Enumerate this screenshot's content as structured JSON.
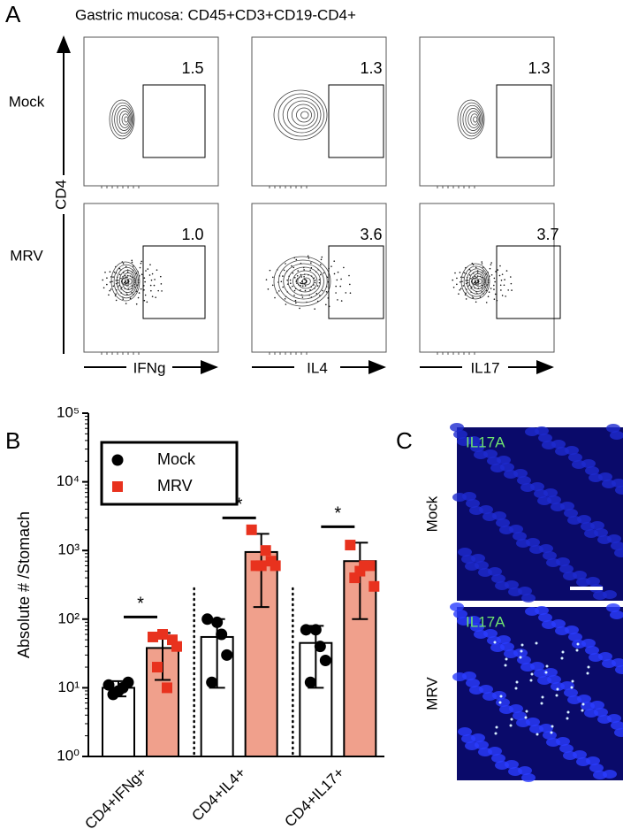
{
  "panel_labels": [
    "A",
    "B",
    "C"
  ],
  "panel_a": {
    "title": "Gastric mucosa: CD45+CD3+CD19-CD4+",
    "y_label": "CD4",
    "rows": [
      "Mock",
      "MRV"
    ],
    "columns": [
      "IFNg",
      "IL4",
      "IL17"
    ],
    "gates": [
      [
        "1.5",
        "1.3",
        "1.3"
      ],
      [
        "1.0",
        "3.6",
        "3.7"
      ]
    ]
  },
  "chart_data": {
    "type": "bar",
    "y_label": "Absolute # /Stomach",
    "log_scale": true,
    "categories": [
      "CD4+IFNg+",
      "CD4+IL4+",
      "CD4+IL17+"
    ],
    "ylim": [
      1,
      100000
    ],
    "yticks": [
      {
        "value": 1,
        "label": "10⁰"
      },
      {
        "value": 10,
        "label": "10¹"
      },
      {
        "value": 100,
        "label": "10²"
      },
      {
        "value": 1000,
        "label": "10³"
      },
      {
        "value": 10000,
        "label": "10⁴"
      },
      {
        "value": 100000,
        "label": "10⁵"
      }
    ],
    "series": [
      {
        "name": "Mock",
        "color": "#000000",
        "bar_color": "#ffffff",
        "marker": "circle",
        "values": [
          10,
          55,
          45
        ],
        "errors": [
          2.5,
          45,
          35
        ],
        "points": [
          [
            11,
            9,
            12,
            8,
            10
          ],
          [
            100,
            90,
            30,
            12,
            60
          ],
          [
            70,
            70,
            25,
            12,
            40
          ]
        ]
      },
      {
        "name": "MRV",
        "color": "#e8321e",
        "bar_color": "#f0a08c",
        "marker": "square",
        "values": [
          38,
          950,
          700
        ],
        "errors": [
          25,
          800,
          600
        ],
        "points": [
          [
            55,
            60,
            50,
            20,
            10,
            40
          ],
          [
            2000,
            600,
            700,
            600,
            1000,
            600
          ],
          [
            1200,
            500,
            600,
            400,
            600,
            300
          ]
        ]
      }
    ],
    "annotations": [
      "*",
      "*",
      "*"
    ]
  },
  "panel_c": {
    "rows": [
      "Mock",
      "MRV"
    ],
    "stain_labels": [
      "IL17A",
      "IL17A"
    ]
  }
}
